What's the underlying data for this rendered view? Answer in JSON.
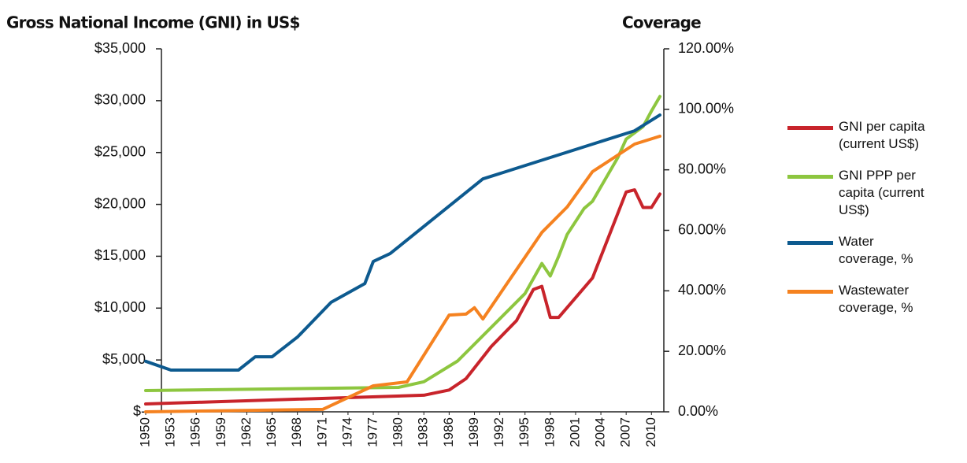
{
  "chart_data": {
    "type": "line",
    "title": "Gross National Income (GNI) in US$",
    "y2_title": "Coverage",
    "xlim": [
      1950,
      2011
    ],
    "xticks": [
      1950,
      1953,
      1956,
      1959,
      1962,
      1965,
      1968,
      1971,
      1974,
      1977,
      1980,
      1983,
      1986,
      1989,
      1992,
      1995,
      1998,
      2001,
      2004,
      2007,
      2010
    ],
    "ylim": [
      0,
      35000
    ],
    "yticks": [
      {
        "value": 0,
        "label": "$-"
      },
      {
        "value": 5000,
        "label": "$5,000"
      },
      {
        "value": 10000,
        "label": "$10,000"
      },
      {
        "value": 15000,
        "label": "$15,000"
      },
      {
        "value": 20000,
        "label": "$20,000"
      },
      {
        "value": 25000,
        "label": "$25,000"
      },
      {
        "value": 30000,
        "label": "$30,000"
      },
      {
        "value": 35000,
        "label": "$35,000"
      }
    ],
    "y2lim": [
      0,
      120
    ],
    "y2ticks": [
      {
        "value": 0,
        "label": "0.00%"
      },
      {
        "value": 20,
        "label": "20.00%"
      },
      {
        "value": 40,
        "label": "40.00%"
      },
      {
        "value": 60,
        "label": "60.00%"
      },
      {
        "value": 80,
        "label": "80.00%"
      },
      {
        "value": 100,
        "label": "100.00%"
      },
      {
        "value": 120,
        "label": "120.00%"
      }
    ],
    "legend": "right",
    "series": [
      {
        "name": "GNI per capita (current US$)",
        "color": "#c8242b",
        "axis": "y",
        "x": [
          1950,
          1983,
          1986,
          1988,
          1991,
          1994,
          1996,
          1997,
          1998,
          1999,
          2003,
          2007,
          2008,
          2009,
          2010,
          2011
        ],
        "values": [
          760,
          1600,
          2100,
          3200,
          6300,
          8800,
          11800,
          12100,
          9100,
          9100,
          12900,
          21200,
          21400,
          19700,
          19700,
          21000
        ]
      },
      {
        "name": "GNI PPP per capita (current US$)",
        "color": "#8dc63f",
        "axis": "y",
        "x": [
          1950,
          1980,
          1983,
          1987,
          1995,
          1997,
          1998,
          1999,
          2000,
          2002,
          2003,
          2006,
          2007,
          2008,
          2009,
          2010,
          2011
        ],
        "values": [
          2050,
          2350,
          2900,
          4900,
          11400,
          14300,
          13100,
          15000,
          17100,
          19600,
          20300,
          24500,
          26300,
          26900,
          27500,
          29000,
          30400
        ]
      },
      {
        "name": "Water coverage, %",
        "color": "#0d5a8f",
        "axis": "y2",
        "x": [
          1950,
          1953,
          1961,
          1963,
          1965,
          1968,
          1972,
          1976,
          1977,
          1979,
          1990,
          2008,
          2011
        ],
        "values": [
          16.7,
          13.8,
          13.8,
          18.2,
          18.2,
          24.7,
          36.2,
          42.4,
          49.7,
          52.3,
          77,
          92.9,
          98.1
        ]
      },
      {
        "name": "Wastewater coverage, %",
        "color": "#f58220",
        "axis": "y2",
        "x": [
          1950,
          1971,
          1977,
          1981,
          1986,
          1988,
          1989,
          1990,
          1997,
          2000,
          2003,
          2008,
          2011
        ],
        "values": [
          0,
          0.8,
          8.6,
          9.9,
          32,
          32.3,
          34.4,
          30.7,
          59.3,
          67.7,
          79.4,
          88.5,
          91.1
        ]
      }
    ]
  }
}
